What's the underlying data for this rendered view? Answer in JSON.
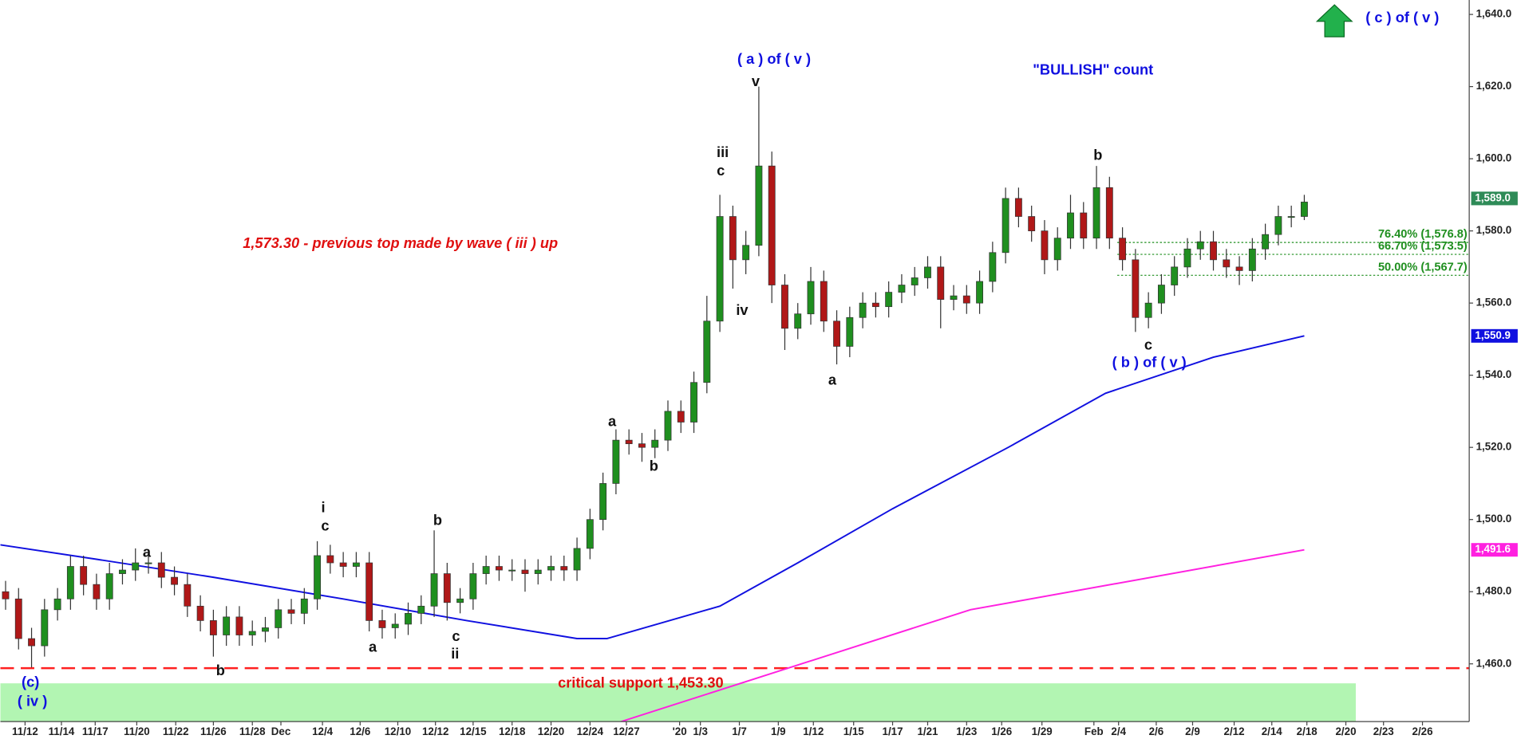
{
  "chart_data": {
    "type": "candlestick",
    "open": [
      1480,
      1478,
      1467,
      1465,
      1475,
      1478,
      1487,
      1482,
      1478,
      1485,
      1486,
      1488,
      1488,
      1484,
      1482,
      1476,
      1472,
      1468,
      1473,
      1468,
      1469,
      1470,
      1475,
      1474,
      1478,
      1490,
      1488,
      1487,
      1488,
      1472,
      1470,
      1471,
      1474,
      1476,
      1485,
      1477,
      1478,
      1485,
      1487,
      1486,
      1486,
      1485,
      1486,
      1487,
      1486,
      1492,
      1500,
      1510,
      1522,
      1521,
      1520,
      1522,
      1530,
      1527,
      1538,
      1555,
      1584,
      1572,
      1576,
      1598,
      1565,
      1553,
      1557,
      1566,
      1555,
      1548,
      1556,
      1560,
      1559,
      1563,
      1565,
      1567,
      1570,
      1561,
      1562,
      1560,
      1566,
      1574,
      1589,
      1584,
      1580,
      1572,
      1578,
      1585,
      1578,
      1592,
      1578,
      1572,
      1556,
      1560,
      1565,
      1570,
      1575,
      1577,
      1572,
      1570,
      1569,
      1575,
      1579,
      1584,
      1584
    ],
    "high": [
      1483,
      1481,
      1470,
      1478,
      1481,
      1490,
      1490,
      1485,
      1488,
      1489,
      1492,
      1491,
      1491,
      1487,
      1485,
      1479,
      1475,
      1476,
      1476,
      1472,
      1473,
      1478,
      1478,
      1481,
      1494,
      1493,
      1491,
      1491,
      1491,
      1475,
      1474,
      1477,
      1479,
      1497,
      1488,
      1481,
      1488,
      1490,
      1490,
      1489,
      1489,
      1489,
      1490,
      1490,
      1495,
      1503,
      1513,
      1525,
      1525,
      1524,
      1525,
      1533,
      1533,
      1541,
      1562,
      1590,
      1587,
      1580,
      1620,
      1602,
      1568,
      1560,
      1570,
      1569,
      1558,
      1559,
      1563,
      1563,
      1566,
      1568,
      1570,
      1573,
      1573,
      1565,
      1565,
      1569,
      1577,
      1592,
      1592,
      1587,
      1583,
      1581,
      1590,
      1588,
      1598,
      1595,
      1581,
      1575,
      1563,
      1568,
      1573,
      1578,
      1580,
      1580,
      1575,
      1573,
      1578,
      1582,
      1587,
      1587,
      1590
    ],
    "low": [
      1475,
      1464,
      1459,
      1462,
      1472,
      1475,
      1479,
      1475,
      1475,
      1482,
      1483,
      1485,
      1481,
      1479,
      1473,
      1469,
      1462,
      1465,
      1465,
      1465,
      1466,
      1467,
      1471,
      1471,
      1475,
      1485,
      1484,
      1484,
      1469,
      1467,
      1467,
      1468,
      1471,
      1473,
      1472,
      1474,
      1475,
      1482,
      1483,
      1483,
      1480,
      1482,
      1483,
      1483,
      1483,
      1489,
      1497,
      1507,
      1518,
      1516,
      1517,
      1519,
      1524,
      1524,
      1535,
      1552,
      1564,
      1568,
      1573,
      1560,
      1547,
      1550,
      1554,
      1552,
      1543,
      1545,
      1553,
      1556,
      1556,
      1560,
      1562,
      1564,
      1553,
      1558,
      1557,
      1557,
      1563,
      1571,
      1581,
      1577,
      1568,
      1569,
      1575,
      1575,
      1575,
      1575,
      1569,
      1552,
      1553,
      1557,
      1562,
      1567,
      1572,
      1569,
      1567,
      1565,
      1566,
      1572,
      1576,
      1581,
      1583
    ],
    "close": [
      1478,
      1467,
      1465,
      1475,
      1478,
      1487,
      1482,
      1478,
      1485,
      1486,
      1488,
      1488,
      1484,
      1482,
      1476,
      1472,
      1468,
      1473,
      1468,
      1469,
      1470,
      1475,
      1474,
      1478,
      1490,
      1488,
      1487,
      1488,
      1472,
      1470,
      1471,
      1474,
      1476,
      1485,
      1477,
      1478,
      1485,
      1487,
      1486,
      1486,
      1485,
      1486,
      1487,
      1486,
      1492,
      1500,
      1510,
      1522,
      1521,
      1520,
      1522,
      1530,
      1527,
      1538,
      1555,
      1584,
      1572,
      1576,
      1598,
      1565,
      1553,
      1557,
      1566,
      1555,
      1548,
      1556,
      1560,
      1559,
      1563,
      1565,
      1567,
      1570,
      1561,
      1562,
      1560,
      1566,
      1574,
      1589,
      1584,
      1580,
      1572,
      1578,
      1585,
      1578,
      1592,
      1578,
      1572,
      1556,
      1560,
      1565,
      1570,
      1575,
      1577,
      1572,
      1570,
      1569,
      1575,
      1579,
      1584,
      1584,
      1588
    ],
    "up_color": "#1f8f1f",
    "down_color": "#b01818",
    "lines": [
      {
        "color": "#1010e0",
        "x": [
          -0.4,
          7,
          16,
          26,
          35.5,
          44,
          46.3,
          55,
          61,
          68.3,
          77.2,
          84.7,
          93,
          100
        ],
        "values": [
          1493,
          1489,
          1484,
          1478,
          1472,
          1467,
          1467,
          1476,
          1488,
          1503,
          1520,
          1535,
          1545,
          1550.9
        ]
      },
      {
        "color": "#ff20e0",
        "x": [
          47.4,
          74.3,
          100
        ],
        "values": [
          1444,
          1475,
          1491.6
        ]
      }
    ],
    "price_labels": [
      {
        "value": 1589,
        "label": "1,589.0",
        "color": "#2e8b57"
      },
      {
        "value": 1550.9,
        "label": "1,550.9",
        "color": "#1010e0"
      },
      {
        "value": 1491.6,
        "label": "1,491.6",
        "color": "#ff20e0"
      }
    ],
    "support_line": {
      "value": 1458.8,
      "color": "#ff2020"
    },
    "support_zone": {
      "range": [
        1444,
        1454.6
      ],
      "color": "#b2f5b2"
    },
    "fib_levels": [
      {
        "value": 1576.8,
        "label": "76.40% (1,576.8)"
      },
      {
        "value": 1573.5,
        "label": "66.70% (1,573.5)"
      },
      {
        "value": 1567.7,
        "label": "50.00% (1,567.7)"
      }
    ],
    "fib_color": "#1f8f1f",
    "xlim": [
      -0.4,
      112.7
    ],
    "ylim": [
      1444,
      1644
    ],
    "yticks": [
      {
        "value": 1460,
        "label": "1,460.0"
      },
      {
        "value": 1480,
        "label": "1,480.0"
      },
      {
        "value": 1500,
        "label": "1,500.0"
      },
      {
        "value": 1520,
        "label": "1,520.0"
      },
      {
        "value": 1540,
        "label": "1,540.0"
      },
      {
        "value": 1560,
        "label": "1,560.0"
      },
      {
        "value": 1580,
        "label": "1,580.0"
      },
      {
        "value": 1600,
        "label": "1,600.0"
      },
      {
        "value": 1620,
        "label": "1,620.0"
      },
      {
        "value": 1640,
        "label": "1,640.0"
      }
    ],
    "xticks": [
      {
        "value": 1.5,
        "label": "11/12"
      },
      {
        "value": 4.3,
        "label": "11/14"
      },
      {
        "value": 6.9,
        "label": "11/17"
      },
      {
        "value": 10.1,
        "label": "11/20"
      },
      {
        "value": 13.1,
        "label": "11/22"
      },
      {
        "value": 16,
        "label": "11/26"
      },
      {
        "value": 19,
        "label": "11/28"
      },
      {
        "value": 21.2,
        "label": "Dec"
      },
      {
        "value": 24.4,
        "label": "12/4"
      },
      {
        "value": 27.3,
        "label": "12/6"
      },
      {
        "value": 30.2,
        "label": "12/10"
      },
      {
        "value": 33.1,
        "label": "12/12"
      },
      {
        "value": 36,
        "label": "12/15"
      },
      {
        "value": 39,
        "label": "12/18"
      },
      {
        "value": 42,
        "label": "12/20"
      },
      {
        "value": 45,
        "label": "12/24"
      },
      {
        "value": 47.8,
        "label": "12/27"
      },
      {
        "value": 51.9,
        "label": "'20"
      },
      {
        "value": 53.5,
        "label": "1/3"
      },
      {
        "value": 56.5,
        "label": "1/7"
      },
      {
        "value": 59.5,
        "label": "1/9"
      },
      {
        "value": 62.2,
        "label": "1/12"
      },
      {
        "value": 65.3,
        "label": "1/15"
      },
      {
        "value": 68.3,
        "label": "1/17"
      },
      {
        "value": 71,
        "label": "1/21"
      },
      {
        "value": 74,
        "label": "1/23"
      },
      {
        "value": 76.7,
        "label": "1/26"
      },
      {
        "value": 79.8,
        "label": "1/29"
      },
      {
        "value": 83.8,
        "label": "Feb"
      },
      {
        "value": 85.7,
        "label": "2/4"
      },
      {
        "value": 88.6,
        "label": "2/6"
      },
      {
        "value": 91.4,
        "label": "2/9"
      },
      {
        "value": 94.6,
        "label": "2/12"
      },
      {
        "value": 97.5,
        "label": "2/14"
      },
      {
        "value": 100.2,
        "label": "2/18"
      },
      {
        "value": 103.2,
        "label": "2/20"
      },
      {
        "value": 106.1,
        "label": "2/23"
      },
      {
        "value": 109.1,
        "label": "2/26"
      }
    ],
    "annotations": [
      "( c ) of ( v )",
      "( a ) of ( v )",
      "v",
      "\"BULLISH\" count",
      "iii",
      "c",
      "iv",
      "b",
      "c",
      "( b ) of ( v )",
      "a",
      "a",
      "b",
      "i",
      "c",
      "b",
      "c",
      "ii",
      "a",
      "b",
      "a",
      "(c)",
      "( iv )",
      "1,573.30 - previous top made by wave ( iii ) up",
      "critical support 1,453.30"
    ]
  }
}
